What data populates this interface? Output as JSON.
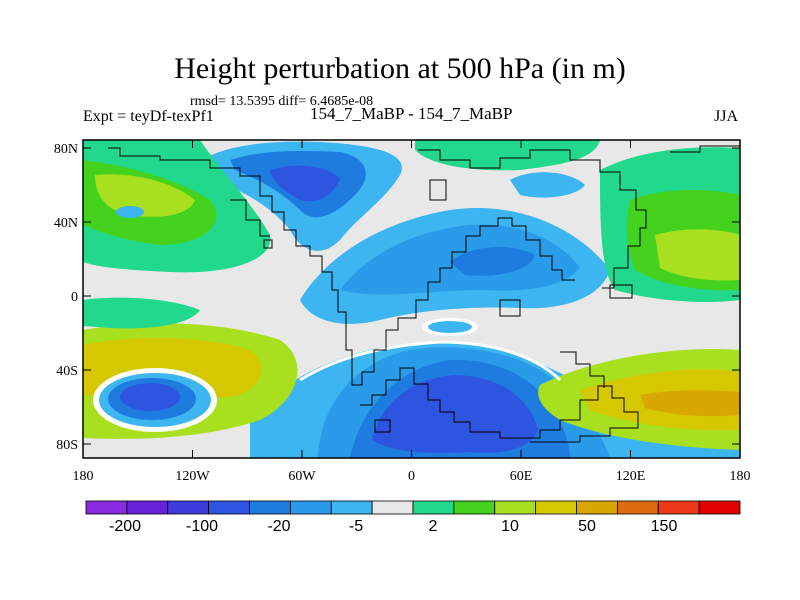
{
  "title": "Height perturbation at 500 hPa (in m)",
  "stats_text": "rmsd= 13.5395 diff= 6.4685e-08",
  "left_label": "Expt = teyDf-texPf1",
  "center_label": "154_7_MaBP - 154_7_MaBP",
  "right_label": "JJA",
  "map": {
    "projection": "cylindrical-equidistant",
    "lon_range": [
      -180,
      180
    ],
    "lat_range": [
      -90,
      90
    ],
    "x_ticks": [
      "180",
      "120W",
      "60W",
      "0",
      "60E",
      "120E",
      "180"
    ],
    "y_ticks": [
      "80N",
      "40N",
      "0",
      "40S",
      "80S"
    ],
    "coastlines": "coarse grid-box land outlines"
  },
  "colorbar": {
    "colors": [
      "#8a2be2",
      "#6a22d8",
      "#3d3ddf",
      "#2e55e0",
      "#1e7be0",
      "#2a9be8",
      "#3cb5f0",
      "#e8e8e8",
      "#22d88c",
      "#44d21e",
      "#a8df1e",
      "#d6c800",
      "#d8a800",
      "#e06a10",
      "#ee3a18",
      "#e00000"
    ],
    "labels": [
      "-200",
      "-100",
      "-20",
      "-5",
      "2",
      "10",
      "50",
      "150"
    ]
  }
}
